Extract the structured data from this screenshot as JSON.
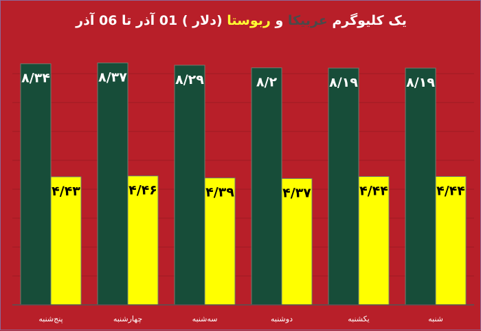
{
  "title": {
    "part1": "یک کلیوگرم ",
    "arabica": "عربیکا",
    "and": " و ",
    "robusta": "ربوستا",
    "part2": " (دلار )  01 آذر تا 06 آذر"
  },
  "colors": {
    "background": "#b81f29",
    "arabica": "#174d39",
    "robusta": "#ffff00",
    "grid": "#9e1b24"
  },
  "chart_data": {
    "type": "bar",
    "title": "یک کلیوگرم عربیکا و ربوستا (دلار ) 01 آذر تا 06 آذر",
    "categories": [
      "پنج‌شنبه",
      "چهارشنبه",
      "سه‌شنبه",
      "دوشنبه",
      "یکشنبه",
      "شنبه"
    ],
    "series": [
      {
        "name": "عربیکا",
        "values": [
          8.34,
          8.37,
          8.29,
          8.2,
          8.19,
          8.19
        ],
        "labels": [
          "۸/۳۴",
          "۸/۳۷",
          "۸/۲۹",
          "۸/۲",
          "۸/۱۹",
          "۸/۱۹"
        ]
      },
      {
        "name": "ربوستا",
        "values": [
          4.43,
          4.46,
          4.39,
          4.37,
          4.44,
          4.44
        ],
        "labels": [
          "۴/۴۳",
          "۴/۴۶",
          "۴/۳۹",
          "۴/۳۷",
          "۴/۴۴",
          "۴/۴۴"
        ]
      }
    ],
    "ylim": [
      0,
      9
    ],
    "grid": true,
    "xlabel": "",
    "ylabel": ""
  }
}
